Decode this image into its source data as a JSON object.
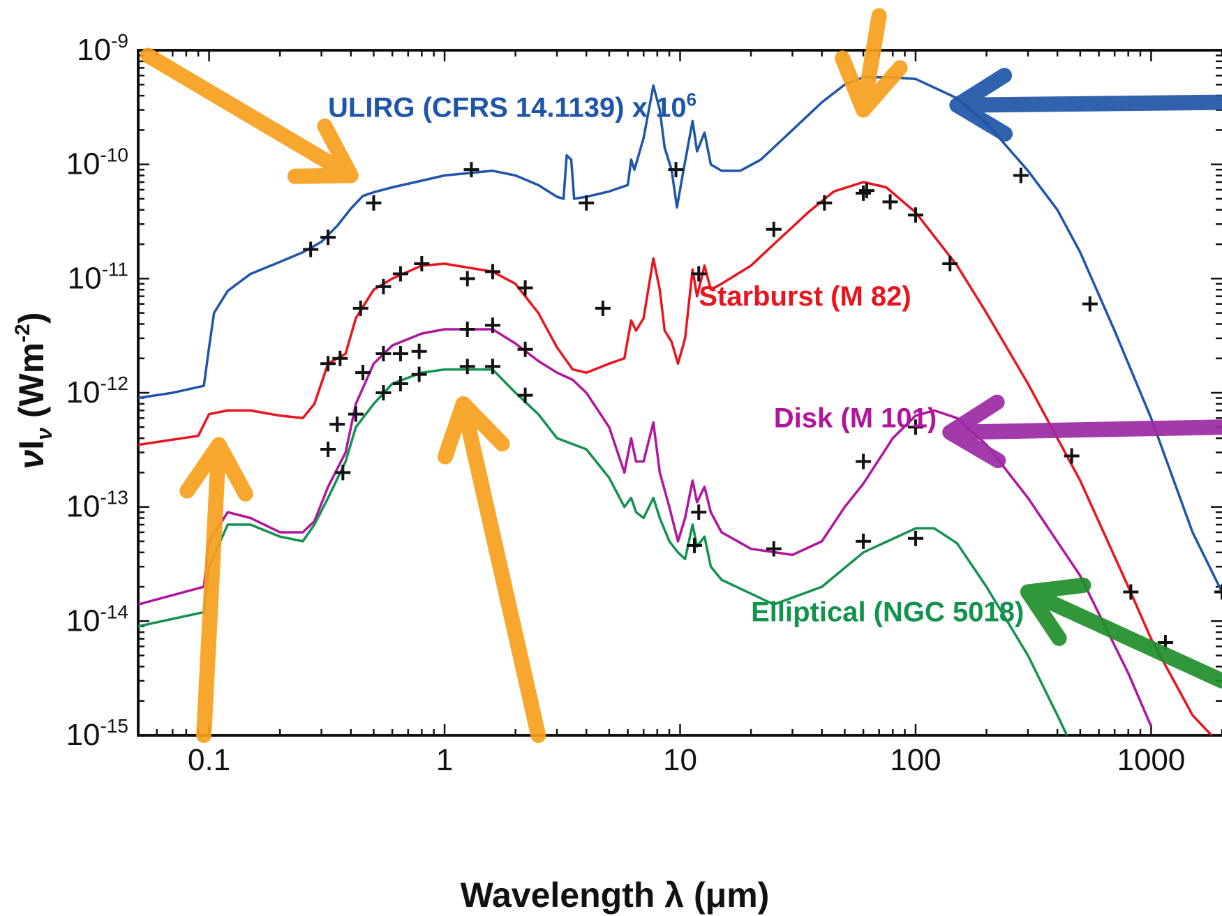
{
  "chart_data": {
    "type": "line",
    "xlabel": "Wavelength λ (μm)",
    "ylabel": {
      "prefix": "ν",
      "base": "I",
      "sub": "ν",
      "unit": " (Wm",
      "unit_exp": "-2",
      "close": ")"
    },
    "x_scale": "log",
    "y_scale": "log",
    "xlim": [
      0.05,
      2000
    ],
    "ylim": [
      1e-15,
      1e-09
    ],
    "grid": false,
    "x_ticks": [
      {
        "value": 0.1,
        "label": "0.1"
      },
      {
        "value": 1,
        "label": "1"
      },
      {
        "value": 10,
        "label": "10"
      },
      {
        "value": 100,
        "label": "100"
      },
      {
        "value": 1000,
        "label": "1000"
      }
    ],
    "y_ticks": [
      {
        "value": 1e-09,
        "base": "10",
        "exp": "-9"
      },
      {
        "value": 1e-10,
        "base": "10",
        "exp": "-10"
      },
      {
        "value": 1e-11,
        "base": "10",
        "exp": "-11"
      },
      {
        "value": 1e-12,
        "base": "10",
        "exp": "-12"
      },
      {
        "value": 1e-13,
        "base": "10",
        "exp": "-13"
      },
      {
        "value": 1e-14,
        "base": "10",
        "exp": "-14"
      },
      {
        "value": 1e-15,
        "base": "10",
        "exp": "-15"
      }
    ],
    "series": [
      {
        "name": "ULIRG (CFRS 14.1139) x 10",
        "name_exp": "6",
        "color": "#1f55a8",
        "label_at": [
          0.32,
          2.6e-10
        ],
        "line": [
          [
            0.05,
            9e-13
          ],
          [
            0.07,
            1e-12
          ],
          [
            0.095,
            1.15e-12
          ],
          [
            0.1,
            2.5e-12
          ],
          [
            0.105,
            5e-12
          ],
          [
            0.12,
            7.8e-12
          ],
          [
            0.15,
            1.1e-11
          ],
          [
            0.2,
            1.4e-11
          ],
          [
            0.25,
            1.7e-11
          ],
          [
            0.3,
            2.1e-11
          ],
          [
            0.35,
            2.9e-11
          ],
          [
            0.4,
            4.1e-11
          ],
          [
            0.45,
            5.3e-11
          ],
          [
            0.5,
            5.7e-11
          ],
          [
            0.6,
            6.3e-11
          ],
          [
            0.8,
            7.2e-11
          ],
          [
            1,
            8e-11
          ],
          [
            1.6,
            8.8e-11
          ],
          [
            2,
            8e-11
          ],
          [
            2.5,
            6.6e-11
          ],
          [
            3,
            5.2e-11
          ],
          [
            3.2,
            5e-11
          ],
          [
            3.3,
            1.2e-10
          ],
          [
            3.45,
            1.1e-10
          ],
          [
            3.55,
            5e-11
          ],
          [
            4,
            5.2e-11
          ],
          [
            5,
            5.8e-11
          ],
          [
            6,
            6.6e-11
          ],
          [
            6.2,
            1.1e-10
          ],
          [
            6.4,
            9e-11
          ],
          [
            7,
            1.7e-10
          ],
          [
            7.7,
            4.9e-10
          ],
          [
            8.2,
            3e-10
          ],
          [
            8.6,
            1.4e-10
          ],
          [
            9.2,
            9e-11
          ],
          [
            9.7,
            4.2e-11
          ],
          [
            10.3,
            8.5e-11
          ],
          [
            11.3,
            2.4e-10
          ],
          [
            11.8,
            1.3e-10
          ],
          [
            12.7,
            1.9e-10
          ],
          [
            13.5,
            1e-10
          ],
          [
            15,
            8.8e-11
          ],
          [
            18,
            8.8e-11
          ],
          [
            22,
            1.1e-10
          ],
          [
            30,
            2e-10
          ],
          [
            40,
            3.5e-10
          ],
          [
            50,
            5e-10
          ],
          [
            60,
            5.8e-10
          ],
          [
            80,
            5.8e-10
          ],
          [
            100,
            5.6e-10
          ],
          [
            150,
            3.8e-10
          ],
          [
            200,
            2.3e-10
          ],
          [
            300,
            8.8e-11
          ],
          [
            400,
            4e-11
          ],
          [
            500,
            1.7e-11
          ],
          [
            700,
            3.5e-12
          ],
          [
            1000,
            6e-13
          ],
          [
            1500,
            6e-14
          ],
          [
            2000,
            1.8e-14
          ]
        ],
        "points": [
          [
            0.27,
            1.8e-11
          ],
          [
            0.32,
            2.3e-11
          ],
          [
            0.5,
            4.6e-11
          ],
          [
            1.3,
            9e-11
          ],
          [
            4.0,
            4.6e-11
          ],
          [
            9.6,
            9e-11
          ],
          [
            280,
            8e-11
          ],
          [
            550,
            6e-12
          ],
          [
            2000,
            1.8e-14
          ]
        ]
      },
      {
        "name": "Starburst (M 82)",
        "color": "#e8141e",
        "label_at": [
          12,
          5.8e-12
        ],
        "line": [
          [
            0.05,
            3.5e-13
          ],
          [
            0.09,
            4.2e-13
          ],
          [
            0.1,
            6.5e-13
          ],
          [
            0.12,
            7e-13
          ],
          [
            0.15,
            7e-13
          ],
          [
            0.2,
            6.3e-13
          ],
          [
            0.25,
            6e-13
          ],
          [
            0.28,
            8e-13
          ],
          [
            0.32,
            1.8e-12
          ],
          [
            0.38,
            2.2e-12
          ],
          [
            0.42,
            4.5e-12
          ],
          [
            0.5,
            8e-12
          ],
          [
            0.6,
            1e-11
          ],
          [
            0.8,
            1.3e-11
          ],
          [
            1,
            1.35e-11
          ],
          [
            1.6,
            1.15e-11
          ],
          [
            2,
            9e-12
          ],
          [
            2.5,
            5e-12
          ],
          [
            3,
            2.5e-12
          ],
          [
            3.5,
            1.6e-12
          ],
          [
            4,
            1.5e-12
          ],
          [
            5,
            1.8e-12
          ],
          [
            5.8,
            2e-12
          ],
          [
            6.2,
            4.3e-12
          ],
          [
            6.5,
            3.5e-12
          ],
          [
            7,
            4.5e-12
          ],
          [
            7.7,
            1.5e-11
          ],
          [
            8.2,
            8e-12
          ],
          [
            8.6,
            3.5e-12
          ],
          [
            9.2,
            2.8e-12
          ],
          [
            9.8,
            1.8e-12
          ],
          [
            10.5,
            3e-12
          ],
          [
            11.3,
            1.2e-11
          ],
          [
            11.8,
            7e-12
          ],
          [
            12.7,
            1.3e-11
          ],
          [
            13.5,
            8e-12
          ],
          [
            15,
            9e-12
          ],
          [
            20,
            1.3e-11
          ],
          [
            25,
            2e-11
          ],
          [
            35,
            3.8e-11
          ],
          [
            45,
            5.8e-11
          ],
          [
            60,
            7e-11
          ],
          [
            75,
            6.3e-11
          ],
          [
            100,
            3.8e-11
          ],
          [
            150,
            1.3e-11
          ],
          [
            200,
            5e-12
          ],
          [
            300,
            1.2e-12
          ],
          [
            500,
            1.7e-13
          ],
          [
            800,
            2e-14
          ],
          [
            1000,
            7e-15
          ],
          [
            1500,
            1.5e-15
          ],
          [
            2000,
            8e-16
          ]
        ],
        "points": [
          [
            0.32,
            1.8e-12
          ],
          [
            0.36,
            2e-12
          ],
          [
            0.44,
            5.5e-12
          ],
          [
            0.55,
            8.5e-12
          ],
          [
            0.65,
            1.1e-11
          ],
          [
            0.8,
            1.35e-11
          ],
          [
            1.25,
            1e-11
          ],
          [
            1.6,
            1.15e-11
          ],
          [
            2.2,
            8.3e-12
          ],
          [
            4.7,
            5.5e-12
          ],
          [
            12,
            1.1e-11
          ],
          [
            25,
            2.7e-11
          ],
          [
            41,
            4.6e-11
          ],
          [
            60,
            5.6e-11
          ],
          [
            62,
            5.9e-11
          ],
          [
            78,
            4.7e-11
          ],
          [
            100,
            3.6e-11
          ],
          [
            140,
            1.35e-11
          ],
          [
            460,
            2.8e-13
          ],
          [
            820,
            1.8e-14
          ],
          [
            1150,
            6.5e-15
          ]
        ]
      },
      {
        "name": "Disk (M 101)",
        "color": "#b0159d",
        "label_at": [
          25,
          5e-13
        ],
        "line": [
          [
            0.05,
            1.4e-14
          ],
          [
            0.095,
            2e-14
          ],
          [
            0.1,
            5e-14
          ],
          [
            0.12,
            9e-14
          ],
          [
            0.15,
            8e-14
          ],
          [
            0.2,
            6e-14
          ],
          [
            0.25,
            6e-14
          ],
          [
            0.28,
            7.5e-14
          ],
          [
            0.32,
            1.5e-13
          ],
          [
            0.38,
            3e-13
          ],
          [
            0.42,
            8e-13
          ],
          [
            0.5,
            1.8e-12
          ],
          [
            0.6,
            2.6e-12
          ],
          [
            0.8,
            3.3e-12
          ],
          [
            1,
            3.6e-12
          ],
          [
            1.6,
            3.6e-12
          ],
          [
            2,
            2.7e-12
          ],
          [
            2.5,
            1.9e-12
          ],
          [
            3,
            1.5e-12
          ],
          [
            3.5,
            1.3e-12
          ],
          [
            4,
            1e-12
          ],
          [
            5,
            5e-13
          ],
          [
            5.8,
            2e-13
          ],
          [
            6.2,
            4e-13
          ],
          [
            6.5,
            2.5e-13
          ],
          [
            7,
            2.5e-13
          ],
          [
            7.7,
            5.5e-13
          ],
          [
            8.2,
            2e-13
          ],
          [
            9,
            1e-13
          ],
          [
            9.8,
            5e-14
          ],
          [
            10.5,
            8e-14
          ],
          [
            11.3,
            1.7e-13
          ],
          [
            11.8,
            1.1e-13
          ],
          [
            12.7,
            1.5e-13
          ],
          [
            13.5,
            9e-14
          ],
          [
            15,
            6e-14
          ],
          [
            20,
            4.3e-14
          ],
          [
            30,
            3.8e-14
          ],
          [
            40,
            5e-14
          ],
          [
            50,
            1e-13
          ],
          [
            60,
            1.6e-13
          ],
          [
            80,
            4e-13
          ],
          [
            100,
            6.3e-13
          ],
          [
            120,
            7e-13
          ],
          [
            150,
            6e-13
          ],
          [
            200,
            3.5e-13
          ],
          [
            300,
            1.2e-13
          ],
          [
            500,
            2.5e-14
          ],
          [
            800,
            3.5e-15
          ],
          [
            1000,
            1.2e-15
          ]
        ],
        "points": [
          [
            0.35,
            5.3e-13
          ],
          [
            0.45,
            1.5e-12
          ],
          [
            0.55,
            2.2e-12
          ],
          [
            0.65,
            2.2e-12
          ],
          [
            0.78,
            2.3e-12
          ],
          [
            1.25,
            3.6e-12
          ],
          [
            1.6,
            3.9e-12
          ],
          [
            2.2,
            2.4e-12
          ],
          [
            100,
            5e-13
          ],
          [
            60,
            2.5e-13
          ]
        ]
      },
      {
        "name": "Elliptical (NGC 5018)",
        "color": "#13924f",
        "label_at": [
          20,
          1e-14
        ],
        "line": [
          [
            0.05,
            9e-15
          ],
          [
            0.095,
            1.2e-14
          ],
          [
            0.1,
            3e-14
          ],
          [
            0.12,
            7e-14
          ],
          [
            0.15,
            7e-14
          ],
          [
            0.2,
            5.5e-14
          ],
          [
            0.25,
            5e-14
          ],
          [
            0.28,
            7e-14
          ],
          [
            0.32,
            1.2e-13
          ],
          [
            0.38,
            2.5e-13
          ],
          [
            0.42,
            5e-13
          ],
          [
            0.5,
            8e-13
          ],
          [
            0.6,
            1.2e-12
          ],
          [
            0.8,
            1.5e-12
          ],
          [
            1,
            1.6e-12
          ],
          [
            1.6,
            1.6e-12
          ],
          [
            2,
            1e-12
          ],
          [
            2.5,
            6.5e-13
          ],
          [
            3,
            4e-13
          ],
          [
            4,
            3.2e-13
          ],
          [
            5,
            1.8e-13
          ],
          [
            5.8,
            1e-13
          ],
          [
            6.2,
            1.2e-13
          ],
          [
            6.5,
            9e-14
          ],
          [
            7,
            8e-14
          ],
          [
            7.7,
            1.2e-13
          ],
          [
            8.2,
            8e-14
          ],
          [
            9,
            5e-14
          ],
          [
            9.8,
            4e-14
          ],
          [
            10.5,
            3.5e-14
          ],
          [
            11.3,
            7e-14
          ],
          [
            11.8,
            4.5e-14
          ],
          [
            12.7,
            5.5e-14
          ],
          [
            13.5,
            3e-14
          ],
          [
            15,
            2.3e-14
          ],
          [
            25,
            1.4e-14
          ],
          [
            40,
            2e-14
          ],
          [
            60,
            4e-14
          ],
          [
            100,
            6.5e-14
          ],
          [
            120,
            6.5e-14
          ],
          [
            150,
            4.8e-14
          ],
          [
            200,
            2e-14
          ],
          [
            300,
            5e-15
          ],
          [
            400,
            1.5e-15
          ],
          [
            450,
            9e-16
          ]
        ],
        "points": [
          [
            0.32,
            3.2e-13
          ],
          [
            0.37,
            2e-13
          ],
          [
            0.42,
            6.5e-13
          ],
          [
            0.55,
            1e-12
          ],
          [
            0.65,
            1.2e-12
          ],
          [
            0.78,
            1.45e-12
          ],
          [
            1.25,
            1.7e-12
          ],
          [
            1.6,
            1.7e-12
          ],
          [
            2.2,
            9.5e-13
          ],
          [
            12,
            9e-14
          ],
          [
            11.5,
            4.6e-14
          ],
          [
            25,
            4.3e-14
          ],
          [
            60,
            5e-14
          ],
          [
            100,
            5.3e-14
          ]
        ]
      }
    ],
    "annotations": [
      {
        "kind": "arrow",
        "color": "#f7a01d",
        "from": [
          0.055,
          9e-10
        ],
        "to": [
          0.4,
          8e-11
        ]
      },
      {
        "kind": "arrow",
        "color": "#f7a01d",
        "from": [
          70,
          2e-09
        ],
        "to": [
          60,
          3e-10
        ]
      },
      {
        "kind": "arrow",
        "color": "#f7a01d",
        "from": [
          0.095,
          1e-15
        ],
        "to": [
          0.11,
          3.5e-13
        ]
      },
      {
        "kind": "arrow",
        "color": "#f7a01d",
        "from": [
          2.5,
          1e-15
        ],
        "to": [
          1.2,
          8e-13
        ]
      },
      {
        "kind": "arrow",
        "color": "#1f55a8",
        "from": [
          2000,
          3.5e-10
        ],
        "to": [
          150,
          3.3e-10
        ]
      },
      {
        "kind": "arrow",
        "color": "#9b2aa6",
        "from": [
          2000,
          5e-13
        ],
        "to": [
          140,
          4.5e-13
        ]
      },
      {
        "kind": "arrow",
        "color": "#1f8f2a",
        "from": [
          2000,
          3e-15
        ],
        "to": [
          300,
          1.8e-14
        ]
      }
    ]
  }
}
